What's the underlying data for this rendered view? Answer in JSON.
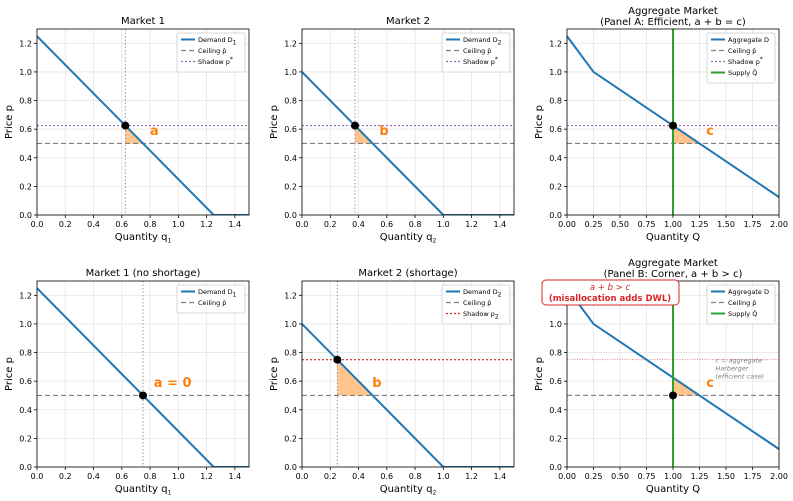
{
  "colors": {
    "demand": "#1f77b4",
    "ceiling": "#7f7f7f",
    "shadow_purple": "#9467bd",
    "shadow_red": "#d62728",
    "supply": "#2ca02c",
    "fill": "#ffbb78",
    "label_orange": "#ff7f0e",
    "dot": "#000000",
    "grid": "#e6e6e6",
    "ref_vline": "#999999",
    "annotation_red": "#d62728",
    "annotation_gray": "#808080"
  },
  "chart_data": [
    {
      "type": "line",
      "title": "Market 1",
      "xlabel": "Quantity q",
      "xlabel_sub": "1",
      "ylabel": "Price p",
      "xlim": [
        0,
        1.5
      ],
      "ylim": [
        0,
        1.3
      ],
      "xticks": [
        "0.0",
        "0.2",
        "0.4",
        "0.6",
        "0.8",
        "1.0",
        "1.2",
        "1.4"
      ],
      "yticks": [
        "0.0",
        "0.2",
        "0.4",
        "0.6",
        "0.8",
        "1.0",
        "1.2"
      ],
      "grid": true,
      "legend_position": "top-right",
      "legend": [
        {
          "label": "Demand D",
          "sub": "1",
          "style": "demand"
        },
        {
          "label": "Ceiling p̄",
          "sub": "",
          "style": "ceiling"
        },
        {
          "label": "Shadow p",
          "sup": "*",
          "sub": "",
          "style": "shadow_purple"
        }
      ],
      "demand": [
        [
          0,
          1.25
        ],
        [
          1.25,
          0
        ],
        [
          1.5,
          0
        ]
      ],
      "ceiling_price": 0.5,
      "shadow_price": 0.625,
      "shadow_style": "shadow_purple",
      "vline_x": 0.625,
      "point": [
        0.625,
        0.625
      ],
      "triangle": [
        [
          0.625,
          0.625
        ],
        [
          0.625,
          0.5
        ],
        [
          0.75,
          0.5
        ]
      ],
      "area_label": {
        "text": "a",
        "x": 0.83,
        "y": 0.56
      }
    },
    {
      "type": "line",
      "title": "Market 2",
      "xlabel": "Quantity q",
      "xlabel_sub": "2",
      "ylabel": "Price p",
      "xlim": [
        0,
        1.5
      ],
      "ylim": [
        0,
        1.3
      ],
      "xticks": [
        "0.0",
        "0.2",
        "0.4",
        "0.6",
        "0.8",
        "1.0",
        "1.2",
        "1.4"
      ],
      "yticks": [
        "0.0",
        "0.2",
        "0.4",
        "0.6",
        "0.8",
        "1.0",
        "1.2"
      ],
      "grid": true,
      "legend_position": "top-right",
      "legend": [
        {
          "label": "Demand D",
          "sub": "2",
          "style": "demand"
        },
        {
          "label": "Ceiling p̄",
          "sub": "",
          "style": "ceiling"
        },
        {
          "label": "Shadow p",
          "sup": "*",
          "sub": "",
          "style": "shadow_purple"
        }
      ],
      "demand": [
        [
          0,
          1.0
        ],
        [
          1.0,
          0
        ],
        [
          1.5,
          0
        ]
      ],
      "ceiling_price": 0.5,
      "shadow_price": 0.625,
      "shadow_style": "shadow_purple",
      "vline_x": 0.375,
      "point": [
        0.375,
        0.625
      ],
      "triangle": [
        [
          0.375,
          0.625
        ],
        [
          0.375,
          0.5
        ],
        [
          0.5,
          0.5
        ]
      ],
      "area_label": {
        "text": "b",
        "x": 0.58,
        "y": 0.56
      }
    },
    {
      "type": "line",
      "title": "Aggregate Market",
      "subtitle": "(Panel A: Efficient, a + b = c)",
      "xlabel": "Quantity Q",
      "xlabel_sub": "",
      "ylabel": "Price p",
      "xlim": [
        0,
        2.0
      ],
      "ylim": [
        0,
        1.3
      ],
      "xticks": [
        "0.00",
        "0.25",
        "0.50",
        "0.75",
        "1.00",
        "1.25",
        "1.50",
        "1.75",
        "2.00"
      ],
      "yticks": [
        "0.0",
        "0.2",
        "0.4",
        "0.6",
        "0.8",
        "1.0",
        "1.2"
      ],
      "grid": true,
      "legend_position": "top-right",
      "legend": [
        {
          "label": "Aggregate D",
          "sub": "",
          "style": "demand"
        },
        {
          "label": "Ceiling p̄",
          "sub": "",
          "style": "ceiling"
        },
        {
          "label": "Shadow p",
          "sup": "*",
          "sub": "",
          "style": "shadow_purple"
        },
        {
          "label": "Supply Q̄",
          "sub": "",
          "style": "supply"
        }
      ],
      "demand": [
        [
          0,
          1.25
        ],
        [
          0.25,
          1.0
        ],
        [
          2.0,
          0.125
        ]
      ],
      "ceiling_price": 0.5,
      "shadow_price": 0.625,
      "shadow_style": "shadow_purple",
      "supply_x": 1.0,
      "point": [
        1.0,
        0.625
      ],
      "triangle": [
        [
          1.0,
          0.625
        ],
        [
          1.0,
          0.5
        ],
        [
          1.25,
          0.5
        ]
      ],
      "area_label": {
        "text": "c",
        "x": 1.35,
        "y": 0.56
      }
    },
    {
      "type": "line",
      "title": "Market 1 (no shortage)",
      "xlabel": "Quantity q",
      "xlabel_sub": "1",
      "ylabel": "Price p",
      "xlim": [
        0,
        1.5
      ],
      "ylim": [
        0,
        1.3
      ],
      "xticks": [
        "0.0",
        "0.2",
        "0.4",
        "0.6",
        "0.8",
        "1.0",
        "1.2",
        "1.4"
      ],
      "yticks": [
        "0.0",
        "0.2",
        "0.4",
        "0.6",
        "0.8",
        "1.0",
        "1.2"
      ],
      "grid": true,
      "legend_position": "top-right",
      "legend": [
        {
          "label": "Demand D",
          "sub": "1",
          "style": "demand"
        },
        {
          "label": "Ceiling p̄",
          "sub": "",
          "style": "ceiling"
        }
      ],
      "demand": [
        [
          0,
          1.25
        ],
        [
          1.25,
          0
        ],
        [
          1.5,
          0
        ]
      ],
      "ceiling_price": 0.5,
      "vline_x": 0.75,
      "point": [
        0.75,
        0.5
      ],
      "area_label": {
        "text": "a = 0",
        "x": 0.96,
        "y": 0.56
      }
    },
    {
      "type": "line",
      "title": "Market 2 (shortage)",
      "xlabel": "Quantity q",
      "xlabel_sub": "2",
      "ylabel": "Price p",
      "xlim": [
        0,
        1.5
      ],
      "ylim": [
        0,
        1.3
      ],
      "xticks": [
        "0.0",
        "0.2",
        "0.4",
        "0.6",
        "0.8",
        "1.0",
        "1.2",
        "1.4"
      ],
      "yticks": [
        "0.0",
        "0.2",
        "0.4",
        "0.6",
        "0.8",
        "1.0",
        "1.2"
      ],
      "grid": true,
      "legend_position": "top-right",
      "legend": [
        {
          "label": "Demand D",
          "sub": "2",
          "style": "demand"
        },
        {
          "label": "Ceiling p̄",
          "sub": "",
          "style": "ceiling"
        },
        {
          "label": "Shadow p",
          "sub": "2",
          "style": "shadow_red"
        }
      ],
      "demand": [
        [
          0,
          1.0
        ],
        [
          1.0,
          0
        ],
        [
          1.5,
          0
        ]
      ],
      "ceiling_price": 0.5,
      "shadow_price": 0.75,
      "shadow_style": "shadow_red",
      "vline_x": 0.25,
      "point": [
        0.25,
        0.75
      ],
      "triangle": [
        [
          0.25,
          0.75
        ],
        [
          0.25,
          0.5
        ],
        [
          0.5,
          0.5
        ]
      ],
      "area_label": {
        "text": "b",
        "x": 0.53,
        "y": 0.56
      }
    },
    {
      "type": "line",
      "title": "Aggregate Market",
      "subtitle": "(Panel B: Corner, a + b > c)",
      "xlabel": "Quantity Q",
      "xlabel_sub": "",
      "ylabel": "Price p",
      "xlim": [
        0,
        2.0
      ],
      "ylim": [
        0,
        1.3
      ],
      "xticks": [
        "0.00",
        "0.25",
        "0.50",
        "0.75",
        "1.00",
        "1.25",
        "1.50",
        "1.75",
        "2.00"
      ],
      "yticks": [
        "0.0",
        "0.2",
        "0.4",
        "0.6",
        "0.8",
        "1.0",
        "1.2"
      ],
      "grid": true,
      "legend_position": "top-right",
      "legend": [
        {
          "label": "Aggregate D",
          "sub": "",
          "style": "demand"
        },
        {
          "label": "Ceiling p̄",
          "sub": "",
          "style": "ceiling"
        },
        {
          "label": "Supply Q̄",
          "sub": "",
          "style": "supply"
        }
      ],
      "demand": [
        [
          0,
          1.25
        ],
        [
          0.25,
          1.0
        ],
        [
          2.0,
          0.125
        ]
      ],
      "ceiling_price": 0.5,
      "faint_line_price": 0.75,
      "supply_x": 1.0,
      "point": [
        1.0,
        0.5
      ],
      "triangle": [
        [
          1.0,
          0.625
        ],
        [
          1.0,
          0.5
        ],
        [
          1.25,
          0.5
        ]
      ],
      "area_label": {
        "text": "c",
        "x": 1.35,
        "y": 0.56
      },
      "callout": {
        "line1": "a + b > c",
        "line2": "(misallocation adds DWL)"
      },
      "note": [
        "c = aggregate",
        "Harberger",
        "(efficient case)"
      ]
    }
  ]
}
